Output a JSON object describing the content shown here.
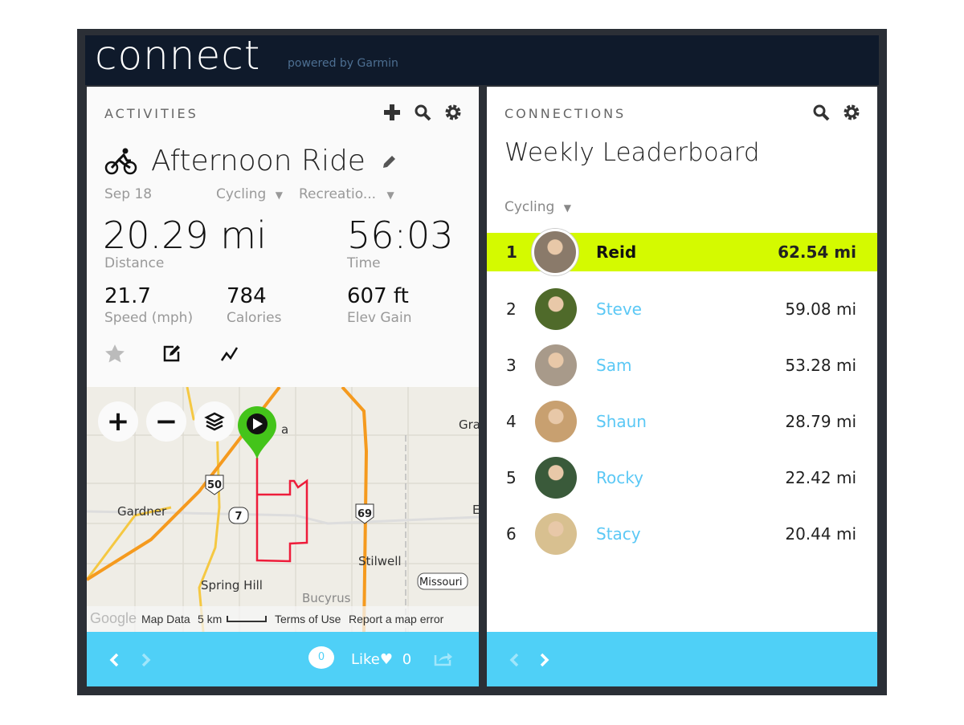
{
  "header": {
    "logo": "connect",
    "powered": "powered by Garmin"
  },
  "activities": {
    "section": "ACTIVITIES",
    "title": "Afternoon Ride",
    "date": "Sep 18",
    "type": "Cycling",
    "event": "Recreatio...",
    "distance": {
      "value": "20.29 mi",
      "label": "Distance"
    },
    "time": {
      "value": "56:03",
      "label": "Time"
    },
    "speed": {
      "value": "21.7",
      "label": "Speed (mph)"
    },
    "calories": {
      "value": "784",
      "label": "Calories"
    },
    "elev": {
      "value": "607 ft",
      "label": "Elev Gain"
    },
    "map": {
      "labels": {
        "gardner": "Gardner",
        "spring_hill": "Spring Hill",
        "stilwell": "Stilwell",
        "missouri": "Missouri",
        "gra": "Gra",
        "e": "E",
        "ola": "a",
        "bucyrus": "Bucyrus"
      },
      "shields": {
        "us50": "50",
        "r7": "7",
        "us69": "69"
      },
      "footer": {
        "map_data": "Map Data",
        "scale": "5 km",
        "terms": "Terms of Use",
        "report": "Report a map error",
        "google": "Google"
      }
    },
    "footer": {
      "comments": "0",
      "like": "Like",
      "likes": "0"
    }
  },
  "connections": {
    "section": "CONNECTIONS",
    "title": "Weekly Leaderboard",
    "filter": "Cycling",
    "rows": [
      {
        "rank": "1",
        "name": "Reid",
        "distance": "62.54 mi",
        "color": "#8a7a6a"
      },
      {
        "rank": "2",
        "name": "Steve",
        "distance": "59.08 mi",
        "color": "#4f6a2a"
      },
      {
        "rank": "3",
        "name": "Sam",
        "distance": "53.28 mi",
        "color": "#a89a8a"
      },
      {
        "rank": "4",
        "name": "Shaun",
        "distance": "28.79 mi",
        "color": "#c8a070"
      },
      {
        "rank": "5",
        "name": "Rocky",
        "distance": "22.42 mi",
        "color": "#3a5a3a"
      },
      {
        "rank": "6",
        "name": "Stacy",
        "distance": "20.44 mi",
        "color": "#d8c090"
      }
    ]
  },
  "colors": {
    "header": "#0f1a2b",
    "footer": "#4fd0f7",
    "highlight": "#d4fa00",
    "link": "#5bc8f5",
    "route": "#ee1c3a",
    "pin": "#44c41a"
  }
}
